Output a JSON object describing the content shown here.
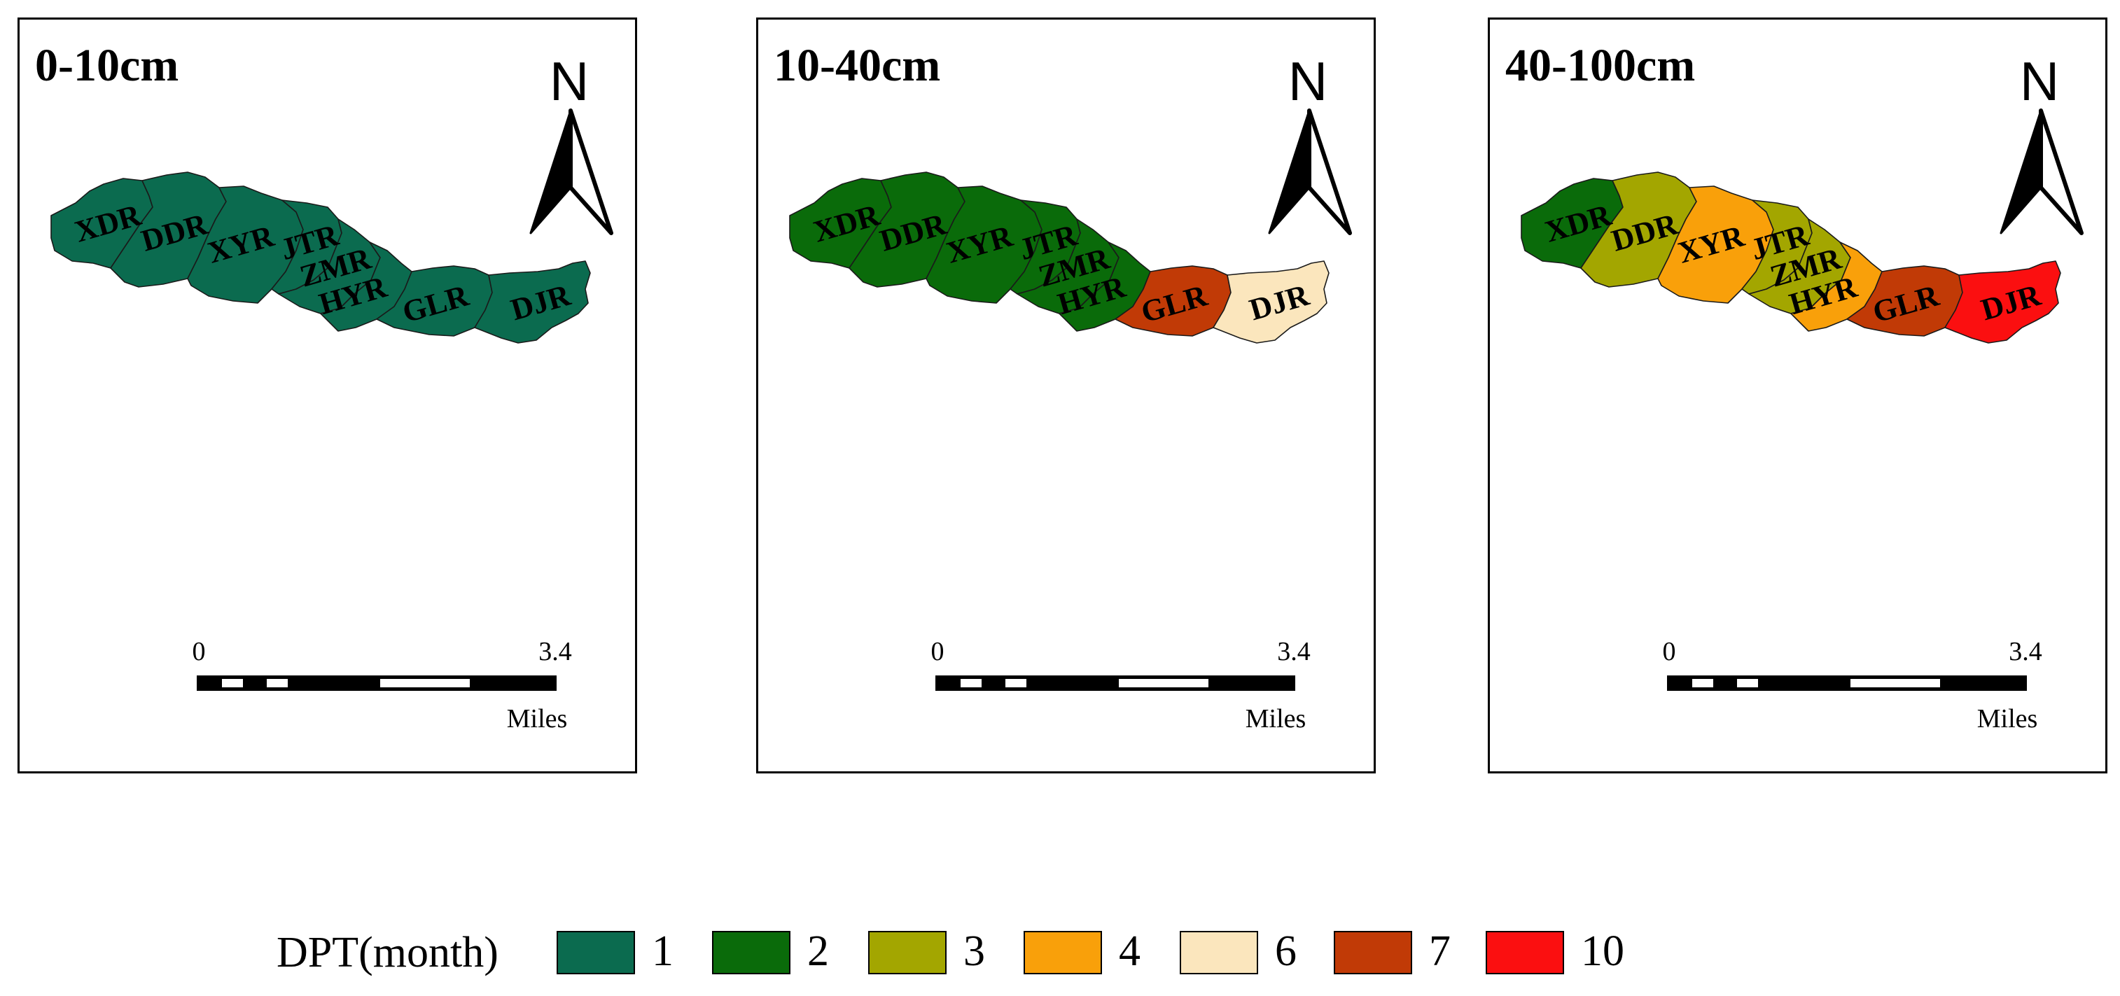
{
  "panels": [
    {
      "title": "0-10cm",
      "north": "N",
      "scale": {
        "start": "0",
        "end": "3.4",
        "unit": "Miles"
      },
      "regions": [
        {
          "name": "XDR",
          "color": "#0b6b4f"
        },
        {
          "name": "DDR",
          "color": "#0b6b4f"
        },
        {
          "name": "XYR",
          "color": "#0b6b4f"
        },
        {
          "name": "JTR",
          "color": "#0b6b4f"
        },
        {
          "name": "ZMR",
          "color": "#0b6b4f"
        },
        {
          "name": "HYR",
          "color": "#0b6b4f"
        },
        {
          "name": "GLR",
          "color": "#0b6b4f"
        },
        {
          "name": "DJR",
          "color": "#0b6b4f"
        }
      ]
    },
    {
      "title": "10-40cm",
      "north": "N",
      "scale": {
        "start": "0",
        "end": "3.4",
        "unit": "Miles"
      },
      "regions": [
        {
          "name": "XDR",
          "color": "#0a6b0a"
        },
        {
          "name": "DDR",
          "color": "#0a6b0a"
        },
        {
          "name": "XYR",
          "color": "#0a6b0a"
        },
        {
          "name": "JTR",
          "color": "#0a6b0a"
        },
        {
          "name": "ZMR",
          "color": "#0a6b0a"
        },
        {
          "name": "HYR",
          "color": "#0a6b0a"
        },
        {
          "name": "GLR",
          "color": "#c13a06"
        },
        {
          "name": "DJR",
          "color": "#fbe6bd"
        }
      ]
    },
    {
      "title": "40-100cm",
      "north": "N",
      "scale": {
        "start": "0",
        "end": "3.4",
        "unit": "Miles"
      },
      "regions": [
        {
          "name": "XDR",
          "color": "#0a6b0a"
        },
        {
          "name": "DDR",
          "color": "#a3a600"
        },
        {
          "name": "XYR",
          "color": "#f9a00a"
        },
        {
          "name": "JTR",
          "color": "#a3a600"
        },
        {
          "name": "ZMR",
          "color": "#a3a600"
        },
        {
          "name": "HYR",
          "color": "#f9a00a"
        },
        {
          "name": "GLR",
          "color": "#c13a06"
        },
        {
          "name": "DJR",
          "color": "#fb0f10"
        }
      ]
    }
  ],
  "legend": {
    "title": "DPT(month)",
    "items": [
      {
        "label": "1",
        "color": "#0b6b4f"
      },
      {
        "label": "2",
        "color": "#0a6b0a"
      },
      {
        "label": "3",
        "color": "#a3a600"
      },
      {
        "label": "4",
        "color": "#f9a00a"
      },
      {
        "label": "6",
        "color": "#fbe6bd"
      },
      {
        "label": "7",
        "color": "#c13a06"
      },
      {
        "label": "10",
        "color": "#fb0f10"
      }
    ]
  }
}
